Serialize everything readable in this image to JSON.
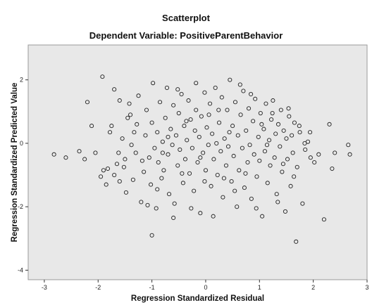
{
  "chart_data": {
    "type": "scatter",
    "title": "Scatterplot",
    "subtitle": "Dependent Variable: PositiveParentBehavior",
    "xlabel": "Regression Standardized Residual",
    "ylabel": "Regression Standardized Predicted Value",
    "xlim": [
      -3.3,
      3.0
    ],
    "ylim": [
      -4.3,
      3.1
    ],
    "x_ticks": [
      "-3",
      "-2",
      "-1",
      "0",
      "1",
      "2",
      "3"
    ],
    "y_ticks": [
      "2",
      "0",
      "-2",
      "-4"
    ],
    "grid": false,
    "plot_background": "#e8e8e8",
    "marker": {
      "shape": "open-circle",
      "color": "#222222"
    },
    "points": [
      [
        -2.82,
        -0.35
      ],
      [
        -2.6,
        -0.45
      ],
      [
        -2.35,
        -0.25
      ],
      [
        -2.25,
        -0.5
      ],
      [
        -2.2,
        1.3
      ],
      [
        -2.12,
        0.55
      ],
      [
        -2.05,
        -0.3
      ],
      [
        -1.95,
        -1.05
      ],
      [
        -1.9,
        -0.85
      ],
      [
        -1.85,
        -1.3
      ],
      [
        -1.82,
        -0.8
      ],
      [
        -1.78,
        0.35
      ],
      [
        -1.75,
        0.55
      ],
      [
        -1.7,
        -1.0
      ],
      [
        -1.65,
        -0.65
      ],
      [
        -1.62,
        -0.3
      ],
      [
        -1.6,
        -1.2
      ],
      [
        -1.55,
        0.15
      ],
      [
        -1.52,
        -0.75
      ],
      [
        -1.5,
        -0.5
      ],
      [
        -1.48,
        -1.55
      ],
      [
        -1.42,
        1.25
      ],
      [
        -1.4,
        0.9
      ],
      [
        -1.38,
        -0.05
      ],
      [
        -1.35,
        -1.15
      ],
      [
        -1.3,
        -0.3
      ],
      [
        -1.28,
        0.6
      ],
      [
        -1.25,
        1.5
      ],
      [
        -1.2,
        -1.85
      ],
      [
        -1.15,
        -0.9
      ],
      [
        -1.12,
        0.25
      ],
      [
        -1.1,
        1.05
      ],
      [
        -1.05,
        -0.45
      ],
      [
        -1.02,
        -1.3
      ],
      [
        -1.0,
        0.65
      ],
      [
        -0.98,
        1.9
      ],
      [
        -0.95,
        -0.15
      ],
      [
        -0.92,
        -2.05
      ],
      [
        -0.9,
        0.35
      ],
      [
        -0.88,
        -0.6
      ],
      [
        -0.85,
        1.3
      ],
      [
        -0.82,
        -1.1
      ],
      [
        -0.8,
        0.05
      ],
      [
        -0.78,
        -0.85
      ],
      [
        -0.75,
        0.8
      ],
      [
        -0.72,
        1.75
      ],
      [
        -0.7,
        -0.35
      ],
      [
        -0.68,
        -1.6
      ],
      [
        -0.65,
        0.45
      ],
      [
        -0.62,
        -0.05
      ],
      [
        -0.6,
        1.2
      ],
      [
        -0.58,
        -1.9
      ],
      [
        -0.55,
        0.25
      ],
      [
        -0.52,
        -0.7
      ],
      [
        -0.5,
        0.95
      ],
      [
        -0.48,
        -0.2
      ],
      [
        -0.45,
        1.55
      ],
      [
        -0.42,
        -1.25
      ],
      [
        -0.4,
        0.55
      ],
      [
        -0.38,
        -0.5
      ],
      [
        -0.35,
        0.1
      ],
      [
        -0.32,
        1.35
      ],
      [
        -0.3,
        -0.95
      ],
      [
        -0.28,
        0.75
      ],
      [
        -0.25,
        -0.15
      ],
      [
        -0.22,
        -1.5
      ],
      [
        -0.2,
        0.4
      ],
      [
        -0.18,
        1.05
      ],
      [
        -0.15,
        -0.6
      ],
      [
        -0.12,
        0.2
      ],
      [
        -0.1,
        -2.2
      ],
      [
        -0.08,
        0.85
      ],
      [
        -0.05,
        -0.3
      ],
      [
        -0.02,
        1.6
      ],
      [
        0.0,
        -0.85
      ],
      [
        0.02,
        0.5
      ],
      [
        0.05,
        -0.05
      ],
      [
        0.08,
        1.25
      ],
      [
        0.1,
        -1.35
      ],
      [
        0.12,
        0.3
      ],
      [
        0.15,
        -0.5
      ],
      [
        0.18,
        1.75
      ],
      [
        0.2,
        0.0
      ],
      [
        0.22,
        -1.0
      ],
      [
        0.25,
        0.65
      ],
      [
        0.28,
        -0.25
      ],
      [
        0.3,
        1.45
      ],
      [
        0.32,
        -1.7
      ],
      [
        0.35,
        0.15
      ],
      [
        0.38,
        -0.7
      ],
      [
        0.4,
        1.05
      ],
      [
        0.42,
        -0.1
      ],
      [
        0.45,
        2.0
      ],
      [
        0.48,
        -1.2
      ],
      [
        0.5,
        0.55
      ],
      [
        0.52,
        -0.4
      ],
      [
        0.55,
        1.3
      ],
      [
        0.58,
        -2.0
      ],
      [
        0.6,
        0.25
      ],
      [
        0.62,
        -0.85
      ],
      [
        0.65,
        0.9
      ],
      [
        0.68,
        -0.15
      ],
      [
        0.7,
        1.65
      ],
      [
        0.72,
        -1.4
      ],
      [
        0.75,
        0.4
      ],
      [
        0.78,
        -0.6
      ],
      [
        0.8,
        1.1
      ],
      [
        0.82,
        -0.05
      ],
      [
        0.85,
        -1.75
      ],
      [
        0.88,
        0.7
      ],
      [
        0.9,
        -0.35
      ],
      [
        0.92,
        1.4
      ],
      [
        0.95,
        -1.05
      ],
      [
        0.98,
        0.2
      ],
      [
        1.0,
        -0.55
      ],
      [
        1.02,
        0.95
      ],
      [
        1.05,
        -2.3
      ],
      [
        1.08,
        0.45
      ],
      [
        1.1,
        -0.25
      ],
      [
        1.12,
        1.25
      ],
      [
        1.15,
        -1.25
      ],
      [
        1.18,
        0.1
      ],
      [
        1.2,
        -0.7
      ],
      [
        1.22,
        0.75
      ],
      [
        1.25,
        1.35
      ],
      [
        1.28,
        -0.45
      ],
      [
        1.3,
        0.3
      ],
      [
        1.32,
        -1.6
      ],
      [
        1.35,
        0.6
      ],
      [
        1.38,
        -0.1
      ],
      [
        1.4,
        1.05
      ],
      [
        1.42,
        -0.9
      ],
      [
        1.45,
        0.4
      ],
      [
        1.48,
        -2.15
      ],
      [
        1.5,
        0.15
      ],
      [
        1.52,
        -0.5
      ],
      [
        1.55,
        0.85
      ],
      [
        1.58,
        -1.35
      ],
      [
        1.6,
        0.25
      ],
      [
        1.62,
        -0.3
      ],
      [
        1.65,
        0.65
      ],
      [
        1.68,
        -3.1
      ],
      [
        1.7,
        -0.75
      ],
      [
        1.75,
        0.35
      ],
      [
        1.8,
        -1.9
      ],
      [
        1.85,
        -0.2
      ],
      [
        1.9,
        0.05
      ],
      [
        1.95,
        -0.45
      ],
      [
        2.1,
        -0.35
      ],
      [
        2.2,
        -2.4
      ],
      [
        2.3,
        0.6
      ],
      [
        2.35,
        -0.8
      ],
      [
        2.4,
        -0.3
      ],
      [
        2.65,
        -0.05
      ],
      [
        2.68,
        -0.35
      ],
      [
        -1.92,
        2.1
      ],
      [
        -1.7,
        1.7
      ],
      [
        -1.6,
        1.35
      ],
      [
        -1.45,
        0.8
      ],
      [
        -1.33,
        0.35
      ],
      [
        -1.18,
        -0.55
      ],
      [
        -1.08,
        -1.95
      ],
      [
        -1.0,
        -2.9
      ],
      [
        -0.9,
        -1.45
      ],
      [
        -0.8,
        -0.3
      ],
      [
        -0.7,
        0.2
      ],
      [
        -0.6,
        -2.35
      ],
      [
        -0.52,
        1.7
      ],
      [
        -0.44,
        -0.95
      ],
      [
        -0.36,
        0.7
      ],
      [
        -0.27,
        -2.05
      ],
      [
        -0.18,
        1.9
      ],
      [
        -0.1,
        -0.45
      ],
      [
        -0.02,
        -1.2
      ],
      [
        0.06,
        0.9
      ],
      [
        0.14,
        -2.3
      ],
      [
        0.24,
        1.05
      ],
      [
        0.34,
        -1.1
      ],
      [
        0.44,
        0.35
      ],
      [
        0.54,
        -1.5
      ],
      [
        0.64,
        1.85
      ],
      [
        0.74,
        -0.95
      ],
      [
        0.84,
        1.55
      ],
      [
        0.94,
        -2.05
      ],
      [
        1.04,
        0.6
      ],
      [
        1.14,
        -0.05
      ],
      [
        1.24,
        0.95
      ],
      [
        1.34,
        -1.85
      ],
      [
        1.44,
        -0.65
      ],
      [
        1.54,
        1.1
      ],
      [
        1.64,
        -1.05
      ],
      [
        1.74,
        0.55
      ],
      [
        1.84,
        0.0
      ],
      [
        1.94,
        0.35
      ],
      [
        2.02,
        -0.6
      ]
    ]
  }
}
